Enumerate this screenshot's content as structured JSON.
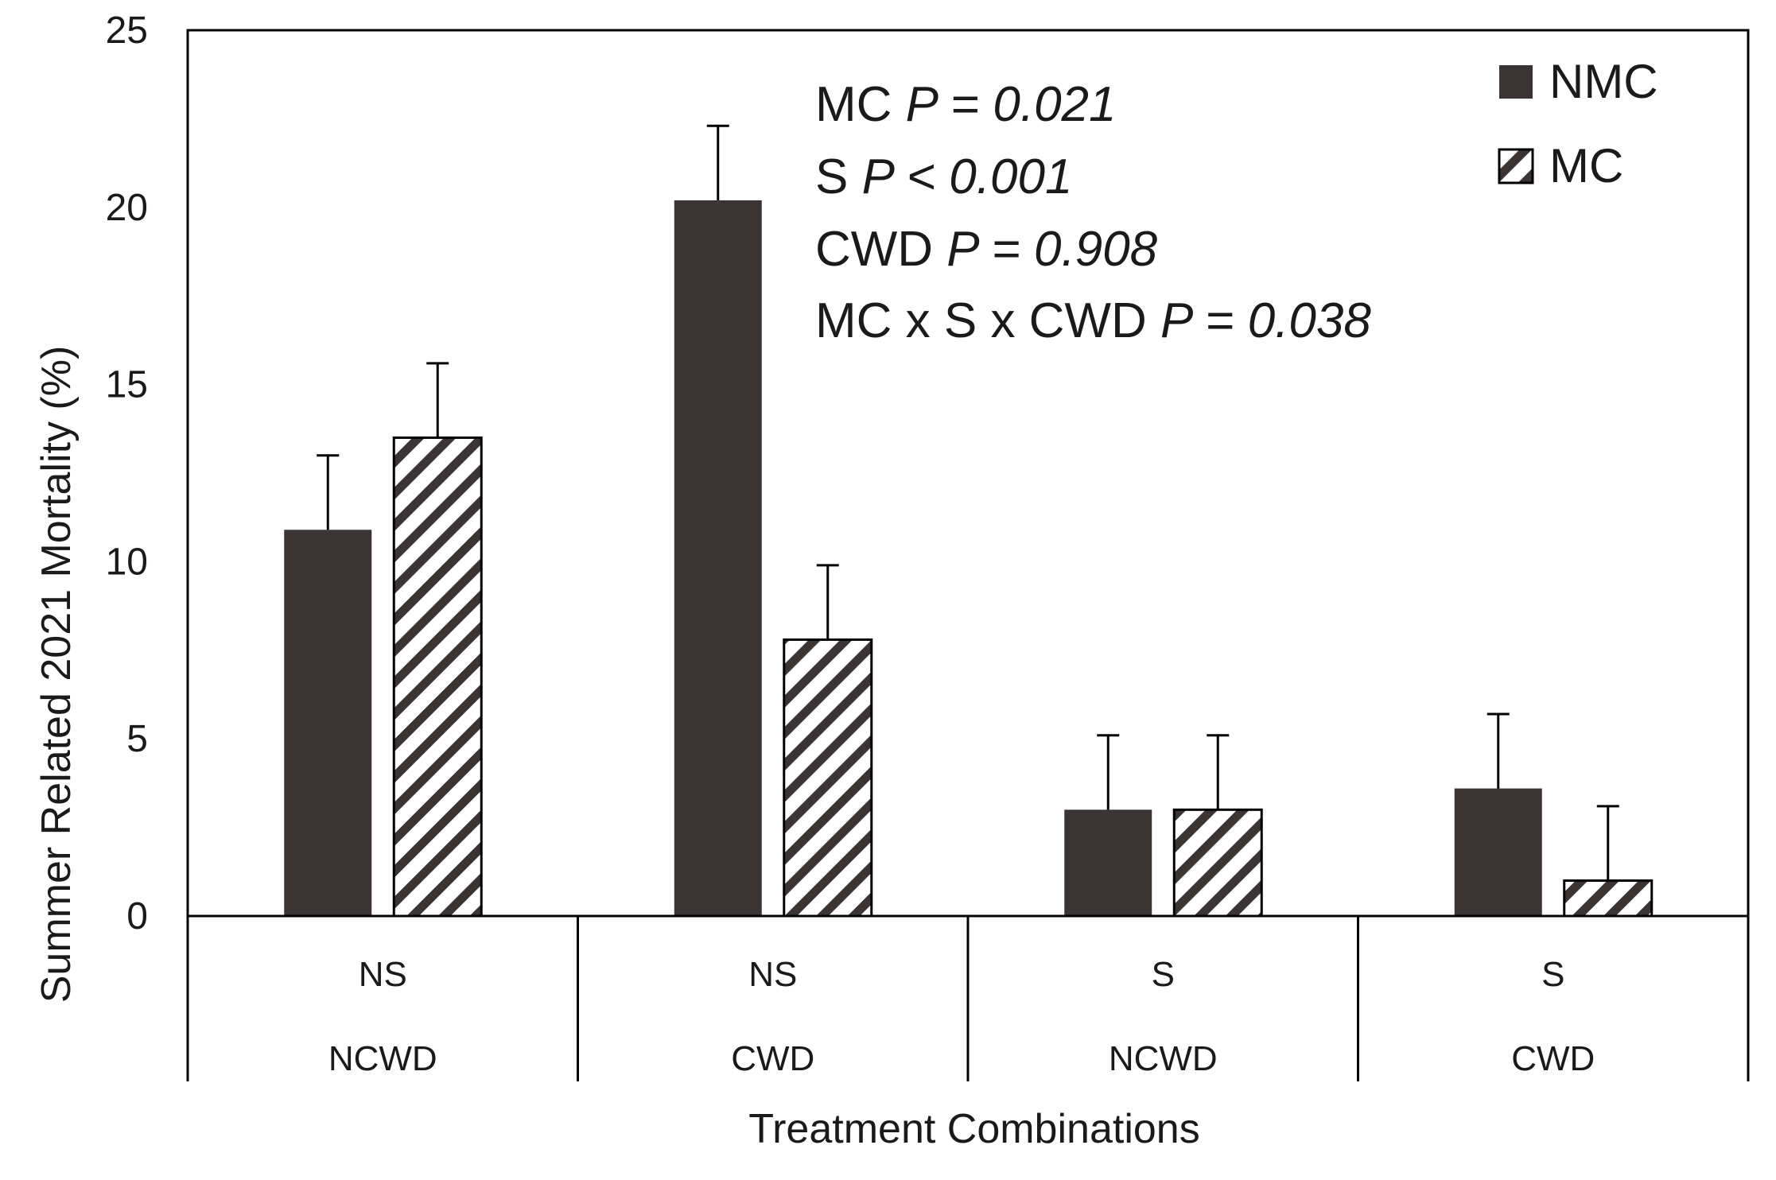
{
  "chart_data": {
    "type": "bar",
    "xlabel": "Treatment Combinations",
    "ylabel": "Summer Related 2021 Mortality (%)",
    "ylim": [
      0,
      25
    ],
    "yticks": [
      "0",
      "5",
      "10",
      "15",
      "20",
      "25"
    ],
    "grid": false,
    "legend_position": "top-right",
    "categories": [
      {
        "s": "NS",
        "cwd": "NCWD"
      },
      {
        "s": "NS",
        "cwd": "CWD"
      },
      {
        "s": "S",
        "cwd": "NCWD"
      },
      {
        "s": "S",
        "cwd": "CWD"
      }
    ],
    "series": [
      {
        "name": "NMC",
        "fill": "solid",
        "color": "#3a3534",
        "values": [
          10.9,
          20.2,
          3.0,
          3.6
        ],
        "errors": [
          2.1,
          2.1,
          2.1,
          2.1
        ]
      },
      {
        "name": "MC",
        "fill": "hatched",
        "color": "#3a3534",
        "values": [
          13.5,
          7.8,
          3.0,
          1.0
        ],
        "errors": [
          2.1,
          2.1,
          2.1,
          2.1
        ]
      }
    ],
    "annotations": [
      {
        "label": "MC",
        "stat": "P = 0.021"
      },
      {
        "label": "S",
        "stat": "P < 0.001"
      },
      {
        "label": "CWD",
        "stat": "P  = 0.908"
      },
      {
        "label": "MC x S x CWD",
        "stat": "P = 0.038"
      }
    ]
  }
}
